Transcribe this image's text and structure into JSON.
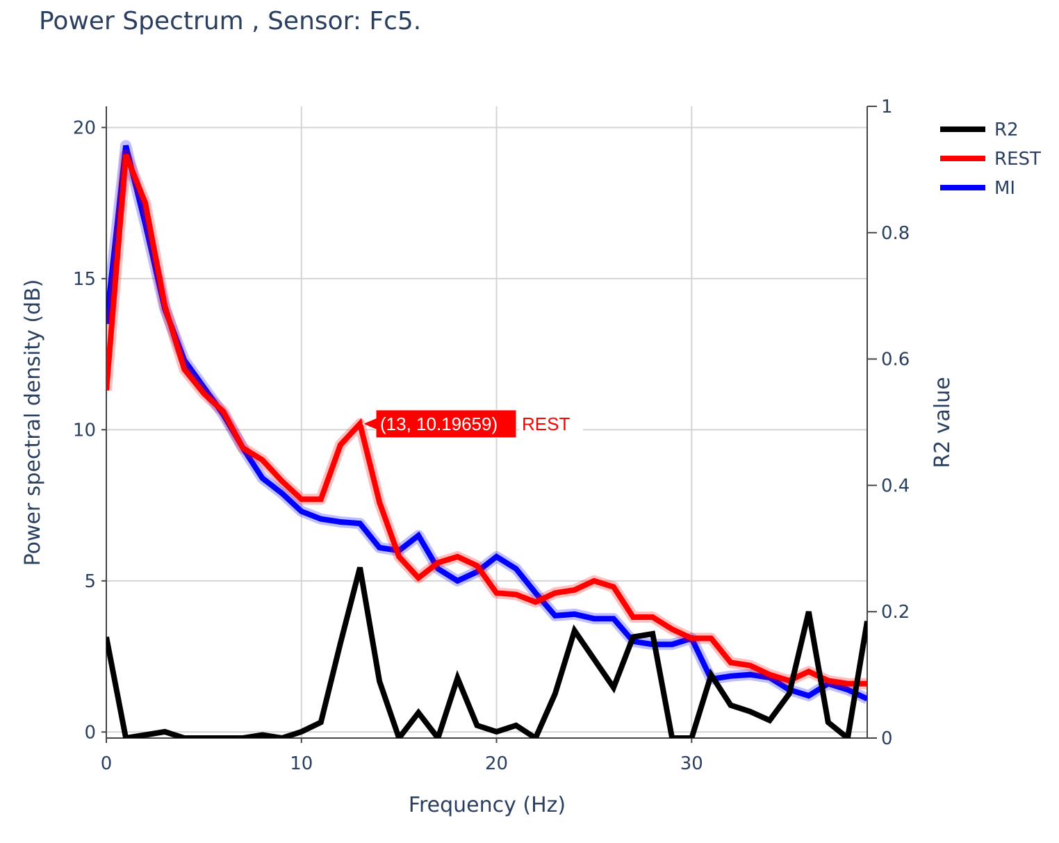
{
  "chart_data": {
    "type": "line",
    "title": "Power Spectrum , Sensor: Fc5.",
    "xlabel": "Frequency (Hz)",
    "ylabel": "Power spectral density (dB)",
    "y2label": "R2 value",
    "xlim": [
      0,
      39
    ],
    "ylim": [
      -0.2,
      20.7
    ],
    "y2lim": [
      0,
      1
    ],
    "xticks": [
      0,
      10,
      20,
      30
    ],
    "yticks": [
      0,
      5,
      10,
      15,
      20
    ],
    "y2ticks": [
      0,
      0.2,
      0.4,
      0.6,
      0.8,
      1
    ],
    "y2ticklabels": [
      "0",
      "0.2",
      "0.4",
      "0.6",
      "0.8",
      "1"
    ],
    "grid": true,
    "legend_position": "top-right",
    "x": [
      0,
      1,
      2,
      3,
      4,
      5,
      6,
      7,
      8,
      9,
      10,
      11,
      12,
      13,
      14,
      15,
      16,
      17,
      18,
      19,
      20,
      21,
      22,
      23,
      24,
      25,
      26,
      27,
      28,
      29,
      30,
      31,
      32,
      33,
      34,
      35,
      36,
      37,
      38,
      39
    ],
    "series": [
      {
        "name": "R2",
        "axis": "right",
        "color": "#000000",
        "values": [
          0.16,
          0.0,
          0.005,
          0.01,
          0.0,
          0.0,
          0.0,
          0.0,
          0.005,
          0.0,
          0.01,
          0.025,
          0.15,
          0.27,
          0.09,
          0.0,
          0.04,
          0.0,
          0.095,
          0.02,
          0.01,
          0.02,
          0.0,
          0.07,
          0.17,
          0.125,
          0.08,
          0.16,
          0.165,
          0.0,
          0.0,
          0.1,
          0.052,
          0.042,
          0.028,
          0.07,
          0.2,
          0.025,
          0.0,
          0.185
        ]
      },
      {
        "name": "REST",
        "axis": "left",
        "color": "#ff0000",
        "values": [
          11.3,
          19.1,
          17.5,
          14.1,
          12.0,
          11.2,
          10.6,
          9.4,
          9.0,
          8.3,
          7.7,
          7.7,
          9.5,
          10.19659,
          7.6,
          5.8,
          5.1,
          5.6,
          5.8,
          5.5,
          4.6,
          4.55,
          4.3,
          4.6,
          4.7,
          5.0,
          4.8,
          3.8,
          3.8,
          3.4,
          3.1,
          3.1,
          2.3,
          2.2,
          1.9,
          1.7,
          2.0,
          1.7,
          1.6,
          1.6
        ]
      },
      {
        "name": "MI",
        "axis": "left",
        "color": "#0000ff",
        "values": [
          13.5,
          19.4,
          16.8,
          14.0,
          12.3,
          11.4,
          10.5,
          9.4,
          8.4,
          7.9,
          7.3,
          7.05,
          6.95,
          6.9,
          6.1,
          6.0,
          6.5,
          5.4,
          5.0,
          5.3,
          5.8,
          5.4,
          4.6,
          3.85,
          3.9,
          3.75,
          3.75,
          3.0,
          2.9,
          2.9,
          3.1,
          1.75,
          1.85,
          1.9,
          1.8,
          1.4,
          1.2,
          1.6,
          1.4,
          1.1
        ]
      }
    ],
    "hover": {
      "series": "REST",
      "x": 13,
      "y": 10.19659,
      "text": "(13, 10.19659)",
      "label": "REST"
    }
  }
}
